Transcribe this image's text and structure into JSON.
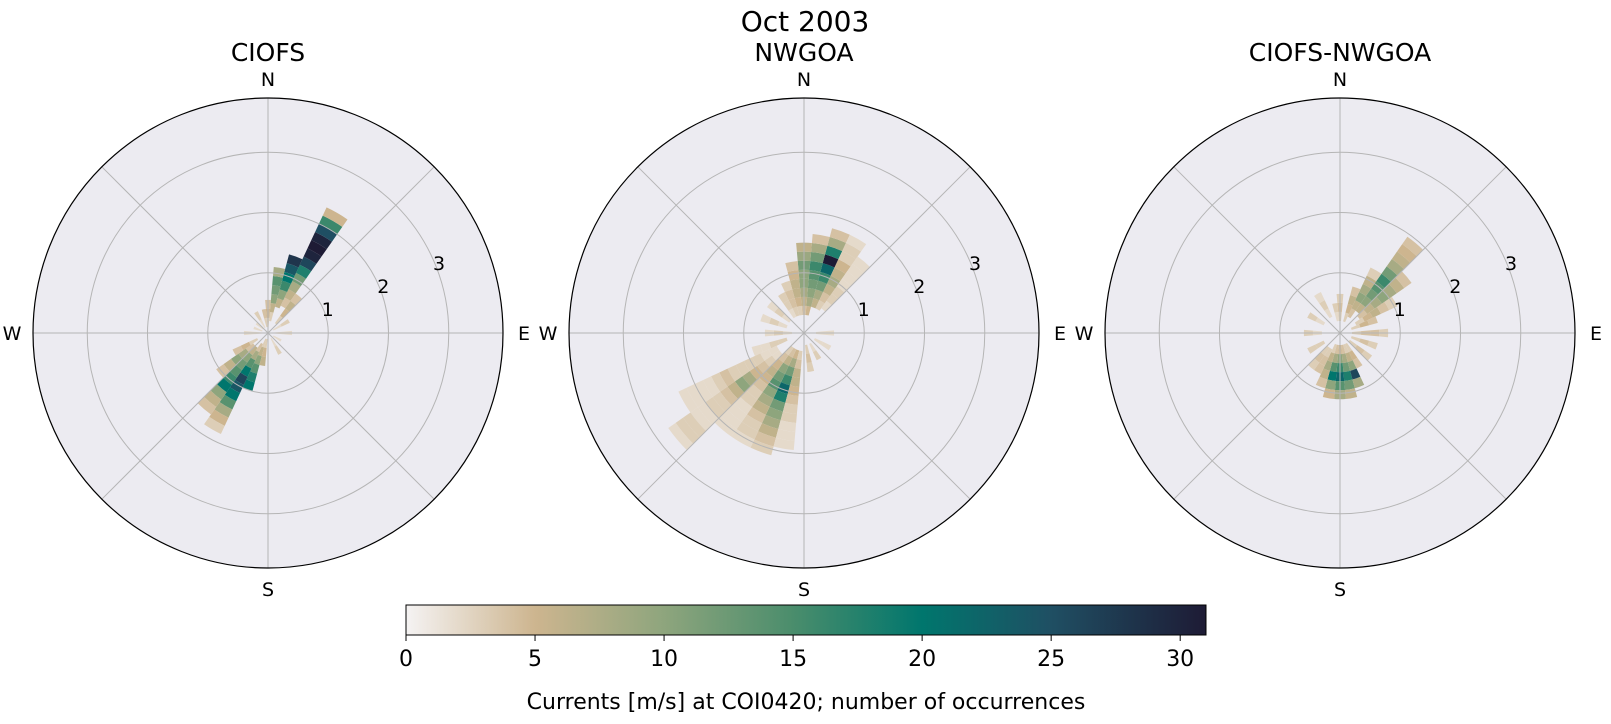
{
  "figure": {
    "title": "Oct 2003",
    "colorbar_label": "Currents [m/s] at COI0420; number of occurrences"
  },
  "chart_data": {
    "type": "polar-histogram",
    "suptitle": "Oct 2003",
    "direction_labels": [
      "N",
      "E",
      "S",
      "W"
    ],
    "radial_ticks": [
      "1",
      "2",
      "3"
    ],
    "radial_range": [
      0,
      3.9
    ],
    "direction_bins": 36,
    "speed_bin_width": 0.15,
    "grid": true,
    "colorscale": {
      "name": "rain",
      "range": [
        0,
        31
      ],
      "ticks": [
        0,
        5,
        10,
        15,
        20,
        25,
        30
      ],
      "stops": [
        [
          0,
          "#f5f3f3"
        ],
        [
          5,
          "#cdb58f"
        ],
        [
          10,
          "#8ea57d"
        ],
        [
          15,
          "#4a8d6c"
        ],
        [
          20,
          "#00766d"
        ],
        [
          25,
          "#1f4f63"
        ],
        [
          31,
          "#1e1b35"
        ]
      ]
    },
    "panels": [
      {
        "title": "CIOFS",
        "bins": [
          {
            "dir": 30,
            "r0": 0.5,
            "counts": [
              4,
              6,
              8,
              12,
              18,
              26,
              30,
              31,
              30,
              25,
              16,
              5
            ]
          },
          {
            "dir": 20,
            "r0": 0.45,
            "counts": [
              6,
              10,
              16,
              20,
              24,
              28
            ]
          },
          {
            "dir": 10,
            "r0": 0.2,
            "counts": [
              3,
              6,
              10,
              12,
              14,
              8
            ]
          },
          {
            "dir": 40,
            "r0": 0.2,
            "counts": [
              3,
              5,
              6,
              4
            ]
          },
          {
            "dir": 0,
            "r0": 0.1,
            "counts": [
              3,
              5,
              4
            ]
          },
          {
            "dir": 350,
            "r0": 0.1,
            "counts": [
              3,
              4
            ]
          },
          {
            "dir": 330,
            "r0": 0.1,
            "counts": [
              2,
              3
            ]
          },
          {
            "dir": 60,
            "r0": 0.1,
            "counts": [
              2,
              3
            ]
          },
          {
            "dir": 90,
            "r0": 0.1,
            "counts": [
              2,
              2
            ]
          },
          {
            "dir": 120,
            "r0": 0.1,
            "counts": [
              2
            ]
          },
          {
            "dir": 150,
            "r0": 0.1,
            "counts": [
              2,
              3
            ]
          },
          {
            "dir": 270,
            "r0": 0.1,
            "counts": [
              2,
              2
            ]
          },
          {
            "dir": 290,
            "r0": 0.1,
            "counts": [
              2
            ]
          },
          {
            "dir": 310,
            "r0": 0.1,
            "counts": [
              2
            ]
          },
          {
            "dir": 200,
            "r0": 0.1,
            "counts": [
              3,
              6,
              10,
              14,
              18,
              20
            ]
          },
          {
            "dir": 210,
            "r0": 0.2,
            "counts": [
              4,
              8,
              14,
              20,
              26,
              24,
              20,
              14,
              8,
              5,
              3
            ]
          },
          {
            "dir": 220,
            "r0": 0.3,
            "counts": [
              6,
              10,
              12,
              14,
              16,
              20,
              10,
              6,
              4
            ]
          },
          {
            "dir": 230,
            "r0": 0.3,
            "counts": [
              4,
              8,
              10,
              6,
              4
            ]
          },
          {
            "dir": 240,
            "r0": 0.2,
            "counts": [
              3,
              5,
              4
            ]
          },
          {
            "dir": 190,
            "r0": 0.1,
            "counts": [
              3,
              5,
              6
            ]
          }
        ]
      },
      {
        "title": "NWGOA",
        "bins": [
          {
            "dir": 20,
            "r0": 0.45,
            "counts": [
              6,
              8,
              12,
              16,
              22,
              31,
              18,
              8,
              4
            ]
          },
          {
            "dir": 10,
            "r0": 0.3,
            "counts": [
              5,
              8,
              10,
              12,
              14,
              16,
              12,
              8,
              4
            ]
          },
          {
            "dir": 0,
            "r0": 0.3,
            "counts": [
              4,
              6,
              8,
              10,
              10,
              12,
              9,
              6
            ]
          },
          {
            "dir": 350,
            "r0": 0.3,
            "counts": [
              3,
              5,
              6,
              6,
              5,
              4
            ]
          },
          {
            "dir": 30,
            "r0": 0.45,
            "counts": [
              3,
              4,
              6,
              8,
              6,
              5,
              3,
              3,
              2
            ]
          },
          {
            "dir": 40,
            "r0": 0.5,
            "counts": [
              2,
              3,
              3,
              2,
              2,
              2,
              2
            ]
          },
          {
            "dir": 340,
            "r0": 0.3,
            "counts": [
              3,
              4,
              4,
              3
            ]
          },
          {
            "dir": 330,
            "r0": 0.3,
            "counts": [
              2,
              3,
              3
            ]
          },
          {
            "dir": 310,
            "r0": 0.3,
            "counts": [
              2,
              3,
              2
            ]
          },
          {
            "dir": 290,
            "r0": 0.3,
            "counts": [
              2,
              3,
              2
            ]
          },
          {
            "dir": 270,
            "r0": 0.2,
            "counts": [
              2,
              3,
              2
            ]
          },
          {
            "dir": 250,
            "r0": 0.3,
            "counts": [
              3,
              3,
              2,
              2
            ]
          },
          {
            "dir": 90,
            "r0": 0.2,
            "counts": [
              2,
              2
            ]
          },
          {
            "dir": 120,
            "r0": 0.2,
            "counts": [
              2,
              2
            ]
          },
          {
            "dir": 150,
            "r0": 0.2,
            "counts": [
              2,
              3
            ]
          },
          {
            "dir": 170,
            "r0": 0.2,
            "counts": [
              3,
              4,
              3
            ]
          },
          {
            "dir": 200,
            "r0": 0.3,
            "counts": [
              5,
              8,
              12,
              16,
              22,
              18,
              12,
              10,
              8,
              6,
              4,
              3
            ]
          },
          {
            "dir": 210,
            "r0": 0.3,
            "counts": [
              4,
              6,
              10,
              12,
              14,
              10,
              8,
              6,
              4,
              3,
              3,
              2
            ]
          },
          {
            "dir": 190,
            "r0": 0.3,
            "counts": [
              3,
              4,
              6,
              6,
              5,
              4,
              3,
              3,
              2,
              2,
              2
            ]
          },
          {
            "dir": 220,
            "r0": 0.3,
            "counts": [
              3,
              4,
              5,
              6,
              5,
              4,
              3,
              3,
              2,
              2,
              2,
              2
            ]
          },
          {
            "dir": 230,
            "r0": 0.5,
            "counts": [
              2,
              3,
              4,
              5,
              8,
              10,
              6,
              4,
              3,
              3,
              2,
              2,
              3,
              3,
              2
            ]
          },
          {
            "dir": 240,
            "r0": 0.5,
            "counts": [
              2,
              2,
              3,
              3,
              3,
              3,
              4,
              3,
              2,
              2,
              2,
              2
            ]
          }
        ]
      },
      {
        "title": "CIOFS-NWGOA",
        "bins": [
          {
            "dir": 40,
            "r0": 0.45,
            "counts": [
              6,
              10,
              12,
              14,
              16,
              12,
              8,
              6,
              5,
              4
            ]
          },
          {
            "dir": 50,
            "r0": 0.4,
            "counts": [
              4,
              6,
              8,
              10,
              8,
              6,
              4
            ]
          },
          {
            "dir": 30,
            "r0": 0.3,
            "counts": [
              4,
              6,
              10,
              8,
              6,
              3
            ]
          },
          {
            "dir": 60,
            "r0": 0.3,
            "counts": [
              3,
              5,
              6,
              4,
              3
            ]
          },
          {
            "dir": 20,
            "r0": 0.2,
            "counts": [
              3,
              5,
              6,
              4
            ]
          },
          {
            "dir": 70,
            "r0": 0.2,
            "counts": [
              3,
              5,
              4
            ]
          },
          {
            "dir": 0,
            "r0": 0.2,
            "counts": [
              3,
              4,
              3
            ]
          },
          {
            "dir": 90,
            "r0": 0.2,
            "counts": [
              3,
              4,
              4,
              3
            ]
          },
          {
            "dir": 110,
            "r0": 0.2,
            "counts": [
              3,
              4,
              3
            ]
          },
          {
            "dir": 130,
            "r0": 0.2,
            "counts": [
              3,
              4,
              3
            ]
          },
          {
            "dir": 150,
            "r0": 0.2,
            "counts": [
              3,
              5,
              4
            ]
          },
          {
            "dir": 170,
            "r0": 0.2,
            "counts": [
              4,
              8,
              12,
              18,
              12,
              6
            ]
          },
          {
            "dir": 180,
            "r0": 0.2,
            "counts": [
              5,
              10,
              16,
              22,
              14,
              8
            ]
          },
          {
            "dir": 190,
            "r0": 0.2,
            "counts": [
              4,
              8,
              14,
              20,
              10,
              5
            ]
          },
          {
            "dir": 200,
            "r0": 0.2,
            "counts": [
              3,
              6,
              8,
              6,
              4
            ]
          },
          {
            "dir": 160,
            "r0": 0.2,
            "counts": [
              3,
              6,
              10,
              26,
              8
            ]
          },
          {
            "dir": 210,
            "r0": 0.3,
            "counts": [
              3,
              4,
              4
            ]
          },
          {
            "dir": 220,
            "r0": 0.3,
            "counts": [
              3,
              4,
              3
            ]
          },
          {
            "dir": 240,
            "r0": 0.3,
            "counts": [
              3,
              3
            ]
          },
          {
            "dir": 270,
            "r0": 0.3,
            "counts": [
              2,
              3
            ]
          },
          {
            "dir": 300,
            "r0": 0.3,
            "counts": [
              2,
              3
            ]
          },
          {
            "dir": 330,
            "r0": 0.3,
            "counts": [
              2,
              3,
              2
            ]
          },
          {
            "dir": 350,
            "r0": 0.2,
            "counts": [
              2,
              3
            ]
          }
        ]
      }
    ]
  }
}
